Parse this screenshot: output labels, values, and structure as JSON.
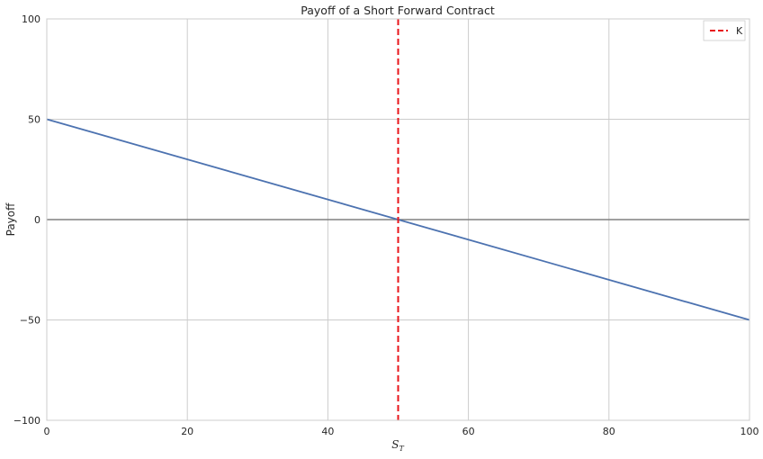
{
  "chart_data": {
    "type": "line",
    "title": "Payoff of a Short Forward Contract",
    "xlabel": "S_T",
    "xlabel_main": "S",
    "xlabel_sub": "T",
    "ylabel": "Payoff",
    "xlim": [
      0,
      100
    ],
    "ylim": [
      -100,
      100
    ],
    "xticks": [
      0,
      20,
      40,
      60,
      80,
      100
    ],
    "yticks": [
      -100,
      -50,
      0,
      50,
      100
    ],
    "ytick_labels": [
      "−100",
      "−50",
      "0",
      "50",
      "100"
    ],
    "grid": true,
    "legend_position": "top-right",
    "series": [
      {
        "values_x": [
          0,
          100
        ],
        "values_y": [
          50,
          -50
        ],
        "color": "#4c72b0",
        "style": "solid"
      }
    ],
    "reference_lines": [
      {
        "orientation": "vertical",
        "x": 50,
        "name": "K",
        "color": "#e8141a",
        "style": "dashed"
      },
      {
        "orientation": "horizontal",
        "y": 0,
        "color": "#808080",
        "style": "solid"
      }
    ]
  }
}
